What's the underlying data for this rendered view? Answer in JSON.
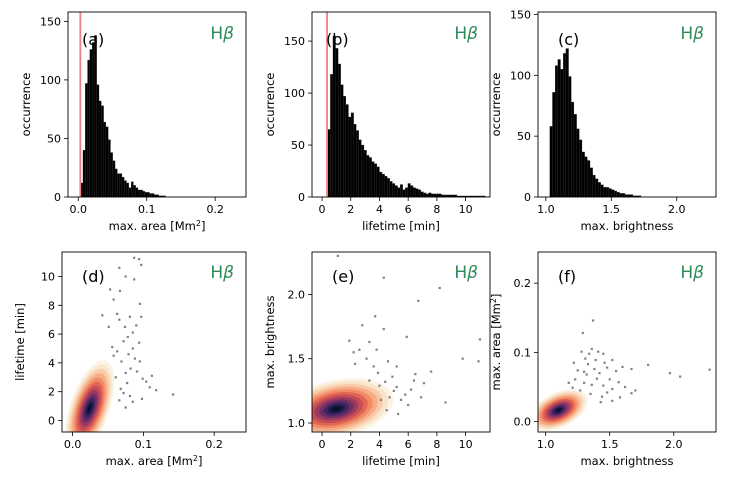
{
  "chart_data": [
    {
      "id": "a",
      "type": "histogram",
      "panel_label": "(a)",
      "line_label": "Hβ",
      "xlabel": "max. area [Mm²]",
      "ylabel": "occurrence",
      "xlim": [
        -0.015,
        0.245
      ],
      "ylim": [
        0,
        158
      ],
      "xticks": [
        0.0,
        0.1,
        0.2
      ],
      "xtick_labels": [
        "0.0",
        "0.1",
        "0.2"
      ],
      "yticks": [
        0,
        50,
        100,
        150
      ],
      "ytick_labels": [
        "0",
        "50",
        "100",
        "150"
      ],
      "bin_start": 0.0035,
      "bin_width": 0.00335,
      "counts": [
        12,
        40,
        97,
        117,
        126,
        132,
        138,
        96,
        82,
        78,
        64,
        60,
        49,
        38,
        31,
        24,
        20,
        20,
        17,
        14,
        12,
        8,
        13,
        10,
        8,
        6,
        6,
        5,
        4,
        4,
        3,
        3,
        2,
        2,
        1,
        1,
        1
      ],
      "threshold": 0.003,
      "threshold_color": "#f08080"
    },
    {
      "id": "b",
      "type": "histogram",
      "panel_label": "(b)",
      "line_label": "Hβ",
      "xlabel": "lifetime [min]",
      "ylabel": "occurrence",
      "xlim": [
        -0.7,
        11.7
      ],
      "ylim": [
        0,
        178
      ],
      "xticks": [
        0,
        2,
        4,
        6,
        8,
        10
      ],
      "xtick_labels": [
        "0",
        "2",
        "4",
        "6",
        "8",
        "10"
      ],
      "yticks": [
        0,
        50,
        100,
        150
      ],
      "ytick_labels": [
        "0",
        "50",
        "100",
        "150"
      ],
      "bin_start": 0.4,
      "bin_width": 0.18,
      "counts": [
        65,
        118,
        155,
        143,
        128,
        108,
        97,
        89,
        77,
        81,
        70,
        64,
        55,
        50,
        45,
        40,
        38,
        34,
        32,
        29,
        24,
        22,
        20,
        18,
        15,
        13,
        11,
        9,
        12,
        7,
        9,
        13,
        11,
        9,
        8,
        7,
        5,
        4,
        3,
        4,
        3,
        3,
        3,
        3,
        2,
        2,
        2,
        2,
        2,
        2,
        1,
        1,
        1,
        1,
        1,
        1,
        1,
        1,
        1,
        1,
        1
      ],
      "threshold": 0.35,
      "threshold_color": "#f08080"
    },
    {
      "id": "c",
      "type": "histogram",
      "panel_label": "(c)",
      "line_label": "Hβ",
      "xlabel": "max. brightness",
      "ylabel": "occurrence",
      "xlim": [
        0.94,
        2.3
      ],
      "ylim": [
        0,
        152
      ],
      "xticks": [
        1.0,
        1.5,
        2.0
      ],
      "xtick_labels": [
        "1.0",
        "1.5",
        "2.0"
      ],
      "yticks": [
        0,
        50,
        100,
        150
      ],
      "ytick_labels": [
        "0",
        "50",
        "100",
        "150"
      ],
      "bin_start": 1.03,
      "bin_width": 0.0205,
      "counts": [
        58,
        86,
        108,
        113,
        105,
        118,
        122,
        99,
        78,
        68,
        56,
        47,
        37,
        33,
        30,
        24,
        18,
        15,
        12,
        10,
        8,
        8,
        7,
        6,
        5,
        4,
        3,
        3,
        2,
        2,
        2,
        1,
        1,
        1
      ],
      "threshold": null
    },
    {
      "id": "d",
      "type": "kde+scatter",
      "panel_label": "(d)",
      "line_label": "Hβ",
      "xlabel": "max. area [Mm²]",
      "ylabel": "lifetime [min]",
      "xlim": [
        -0.015,
        0.245
      ],
      "ylim": [
        -0.8,
        11.7
      ],
      "xticks": [
        0.0,
        0.1,
        0.2
      ],
      "xtick_labels": [
        "0.0",
        "0.1",
        "0.2"
      ],
      "yticks": [
        0,
        2,
        4,
        6,
        8,
        10
      ],
      "ytick_labels": [
        "0",
        "2",
        "4",
        "6",
        "8",
        "10"
      ],
      "kde_center": [
        0.024,
        0.85
      ],
      "kde_sigma": [
        0.011,
        1.05
      ],
      "kde_rho": 0.55,
      "kde_extent": 3.1,
      "scatter": [
        [
          0.087,
          11.3
        ],
        [
          0.094,
          11.2
        ],
        [
          0.097,
          10.8
        ],
        [
          0.066,
          10.6
        ],
        [
          0.075,
          10.0
        ],
        [
          0.087,
          9.8
        ],
        [
          0.053,
          9.1
        ],
        [
          0.067,
          9.0
        ],
        [
          0.095,
          8.1
        ],
        [
          0.042,
          7.3
        ],
        [
          0.063,
          7.4
        ],
        [
          0.066,
          7.0
        ],
        [
          0.081,
          7.2
        ],
        [
          0.097,
          7.2
        ],
        [
          0.074,
          6.5
        ],
        [
          0.09,
          6.6
        ],
        [
          0.085,
          6.1
        ],
        [
          0.072,
          5.5
        ],
        [
          0.078,
          5.8
        ],
        [
          0.094,
          5.4
        ],
        [
          0.085,
          5.0
        ],
        [
          0.063,
          4.8
        ],
        [
          0.079,
          4.6
        ],
        [
          0.088,
          4.3
        ],
        [
          0.095,
          4.1
        ],
        [
          0.082,
          3.6
        ],
        [
          0.075,
          3.3
        ],
        [
          0.099,
          2.9
        ],
        [
          0.109,
          2.3
        ],
        [
          0.118,
          2.1
        ],
        [
          0.142,
          1.8
        ],
        [
          0.085,
          1.3
        ],
        [
          0.098,
          1.5
        ],
        [
          0.072,
          1.9
        ],
        [
          0.058,
          8.4
        ],
        [
          0.051,
          6.5
        ],
        [
          0.069,
          4.1
        ],
        [
          0.061,
          3.0
        ],
        [
          0.091,
          3.4
        ],
        [
          0.077,
          2.6
        ],
        [
          0.068,
          2.2
        ],
        [
          0.066,
          1.4
        ],
        [
          0.075,
          0.9
        ],
        [
          0.104,
          2.7
        ],
        [
          0.112,
          3.1
        ],
        [
          0.081,
          1.7
        ],
        [
          0.058,
          4.5
        ],
        [
          0.056,
          5.1
        ]
      ]
    },
    {
      "id": "e",
      "type": "kde+scatter",
      "panel_label": "(e)",
      "line_label": "Hβ",
      "xlabel": "lifetime [min]",
      "ylabel": "max. brightness",
      "xlim": [
        -0.7,
        11.7
      ],
      "ylim": [
        0.93,
        2.33
      ],
      "xticks": [
        0,
        2,
        4,
        6,
        8,
        10
      ],
      "xtick_labels": [
        "0",
        "2",
        "4",
        "6",
        "8",
        "10"
      ],
      "yticks": [
        1.0,
        1.5,
        2.0
      ],
      "ytick_labels": [
        "1.0",
        "1.5",
        "2.0"
      ],
      "kde_center": [
        1.0,
        1.11
      ],
      "kde_sigma": [
        1.25,
        0.075
      ],
      "kde_rho": 0.3,
      "kde_extent": 3.1,
      "scatter": [
        [
          1.1,
          2.3
        ],
        [
          4.3,
          2.13
        ],
        [
          6.7,
          1.95
        ],
        [
          8.2,
          2.05
        ],
        [
          3.7,
          1.83
        ],
        [
          4.3,
          1.73
        ],
        [
          2.8,
          1.76
        ],
        [
          3.3,
          1.63
        ],
        [
          1.9,
          1.64
        ],
        [
          2.6,
          1.57
        ],
        [
          3.8,
          1.57
        ],
        [
          5.9,
          1.67
        ],
        [
          11.0,
          1.65
        ],
        [
          2.2,
          1.55
        ],
        [
          3.1,
          1.5
        ],
        [
          4.6,
          1.48
        ],
        [
          5.2,
          1.44
        ],
        [
          6.5,
          1.38
        ],
        [
          7.1,
          1.31
        ],
        [
          9.8,
          1.5
        ],
        [
          10.9,
          1.48
        ],
        [
          4.4,
          1.32
        ],
        [
          5.0,
          1.25
        ],
        [
          5.5,
          1.18
        ],
        [
          6.9,
          1.2
        ],
        [
          8.6,
          1.16
        ],
        [
          3.9,
          1.39
        ],
        [
          4.9,
          1.36
        ],
        [
          5.2,
          1.28
        ],
        [
          3.3,
          1.33
        ],
        [
          5.8,
          1.22
        ],
        [
          4.7,
          1.2
        ],
        [
          4.0,
          1.29
        ],
        [
          6.2,
          1.26
        ],
        [
          7.6,
          1.4
        ],
        [
          2.3,
          1.46
        ],
        [
          3.6,
          1.44
        ],
        [
          4.1,
          1.18
        ],
        [
          6.0,
          1.14
        ],
        [
          4.5,
          1.1
        ],
        [
          5.3,
          1.07
        ],
        [
          6.4,
          1.33
        ]
      ]
    },
    {
      "id": "f",
      "type": "kde+scatter",
      "panel_label": "(f)",
      "line_label": "Hβ",
      "xlabel": "max. brightness",
      "ylabel": "max. area [Mm²]",
      "xlim": [
        0.94,
        2.33
      ],
      "ylim": [
        -0.015,
        0.245
      ],
      "xticks": [
        1.0,
        1.5,
        2.0
      ],
      "xtick_labels": [
        "1.0",
        "1.5",
        "2.0"
      ],
      "yticks": [
        0.0,
        0.1,
        0.2
      ],
      "ytick_labels": [
        "0.0",
        "0.1",
        "0.2"
      ],
      "kde_center": [
        1.1,
        0.0165
      ],
      "kde_sigma": [
        0.072,
        0.0095
      ],
      "kde_rho": 0.45,
      "kde_extent": 3.1,
      "scatter": [
        [
          1.37,
          0.146
        ],
        [
          1.29,
          0.128
        ],
        [
          1.36,
          0.105
        ],
        [
          1.41,
          0.101
        ],
        [
          1.45,
          0.098
        ],
        [
          1.28,
          0.101
        ],
        [
          1.34,
          0.098
        ],
        [
          1.31,
          0.091
        ],
        [
          1.39,
          0.089
        ],
        [
          1.33,
          0.083
        ],
        [
          1.46,
          0.085
        ],
        [
          1.52,
          0.089
        ],
        [
          1.38,
          0.076
        ],
        [
          1.3,
          0.072
        ],
        [
          1.42,
          0.07
        ],
        [
          1.48,
          0.078
        ],
        [
          1.55,
          0.073
        ],
        [
          1.6,
          0.079
        ],
        [
          1.67,
          0.076
        ],
        [
          1.8,
          0.082
        ],
        [
          1.97,
          0.07
        ],
        [
          2.05,
          0.065
        ],
        [
          2.28,
          0.075
        ],
        [
          1.22,
          0.085
        ],
        [
          1.25,
          0.074
        ],
        [
          1.23,
          0.061
        ],
        [
          1.3,
          0.056
        ],
        [
          1.36,
          0.053
        ],
        [
          1.45,
          0.052
        ],
        [
          1.52,
          0.047
        ],
        [
          1.62,
          0.05
        ],
        [
          1.7,
          0.045
        ],
        [
          1.35,
          0.04
        ],
        [
          1.44,
          0.036
        ],
        [
          1.52,
          0.03
        ],
        [
          1.58,
          0.035
        ],
        [
          1.67,
          0.041
        ],
        [
          1.43,
          0.028
        ],
        [
          1.5,
          0.061
        ],
        [
          1.18,
          0.056
        ],
        [
          1.21,
          0.049
        ],
        [
          1.27,
          0.045
        ],
        [
          1.32,
          0.068
        ],
        [
          1.4,
          0.062
        ],
        [
          1.57,
          0.057
        ],
        [
          1.48,
          0.042
        ]
      ]
    }
  ],
  "colors": {
    "bars": "#000000",
    "threshold_line": "#f08080",
    "scatter": "#808080",
    "line_label": "#2e8b57",
    "kde_levels": [
      "#fbf4e6",
      "#f9e4cc",
      "#f8ccaa",
      "#f6ad87",
      "#f28b66",
      "#e06653",
      "#c44b57",
      "#9b3a60",
      "#6f2d66",
      "#42255f",
      "#1e1a4a",
      "#0a0f2e"
    ]
  }
}
